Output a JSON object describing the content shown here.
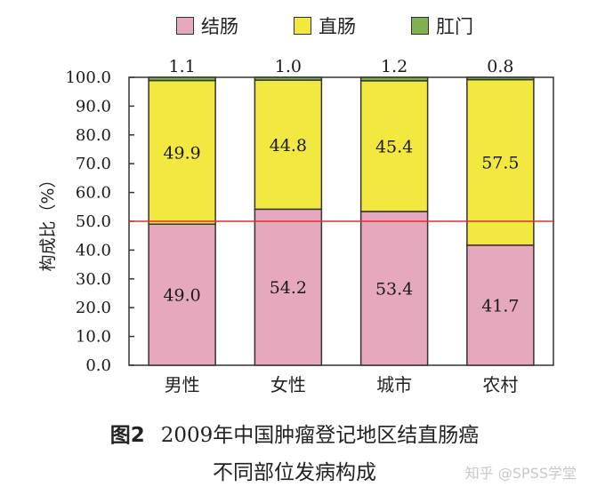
{
  "legend": [
    {
      "name": "结肠",
      "color": "#e6a8bc"
    },
    {
      "name": "直肠",
      "color": "#f3e840"
    },
    {
      "name": "肛门",
      "color": "#7fb24f"
    }
  ],
  "caption": {
    "label": "图2",
    "line1": "2009年中国肿瘤登记地区结直肠癌",
    "line2": "不同部位发病构成"
  },
  "watermark": "知乎 @SPSS学堂",
  "chart_data": {
    "type": "bar",
    "stacked": true,
    "categories": [
      "男性",
      "女性",
      "城市",
      "农村"
    ],
    "series": [
      {
        "name": "结肠",
        "values": [
          49.0,
          54.2,
          53.4,
          41.7
        ],
        "color": "#e6a8bc"
      },
      {
        "name": "直肠",
        "values": [
          49.9,
          44.8,
          45.4,
          57.5
        ],
        "color": "#f3e840"
      },
      {
        "name": "肛门",
        "values": [
          1.1,
          1.0,
          1.2,
          0.8
        ],
        "color": "#7fb24f"
      }
    ],
    "ylabel": "构成比（%）",
    "ylim": [
      0,
      100
    ],
    "yticks": [
      "0.0",
      "10.0",
      "20.0",
      "30.0",
      "40.0",
      "50.0",
      "60.0",
      "70.0",
      "80.0",
      "90.0",
      "100.0"
    ],
    "reference_line": {
      "y": 50,
      "color": "#e03030"
    },
    "legend_position": "top"
  }
}
